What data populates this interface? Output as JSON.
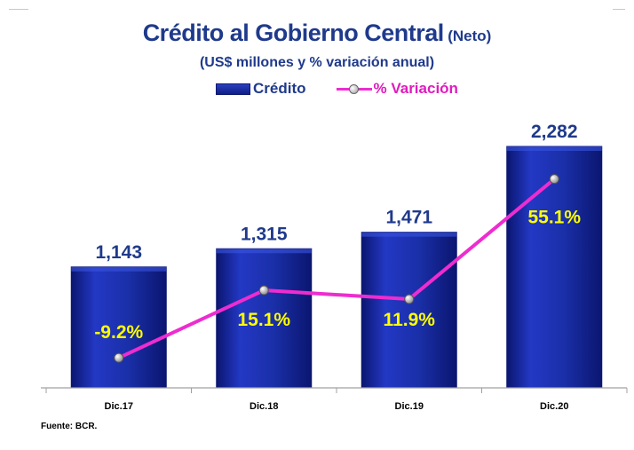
{
  "chart_data": {
    "type": "bar",
    "title": "Crédito al Gobierno Central",
    "title_suffix": "(Neto)",
    "subtitle": "(US$ millones y % variación anual)",
    "categories": [
      "Dic.17",
      "Dic.18",
      "Dic.19",
      "Dic.20"
    ],
    "series": [
      {
        "name": "Crédito",
        "type": "bar",
        "values": [
          1143,
          1315,
          1471,
          2282
        ],
        "labels": [
          "1,143",
          "1,315",
          "1,471",
          "2,282"
        ]
      },
      {
        "name": "% Variación",
        "type": "line",
        "values": [
          -9.2,
          15.1,
          11.9,
          55.1
        ],
        "labels": [
          "-9.2%",
          "15.1%",
          "11.9%",
          "55.1%"
        ]
      }
    ],
    "ylim": [
      0,
      2500
    ],
    "y2lim": [
      -20,
      70
    ],
    "grid": false,
    "legend_position": "top-center"
  },
  "colors": {
    "bar": "#1a2fa8",
    "bar_dark": "#0b1670",
    "line": "#ee2ccf",
    "title": "#1f3a8c",
    "pct_label": "#ffff00",
    "value_label": "#1f3a8c"
  },
  "footer": {
    "source": "Fuente: BCR."
  }
}
